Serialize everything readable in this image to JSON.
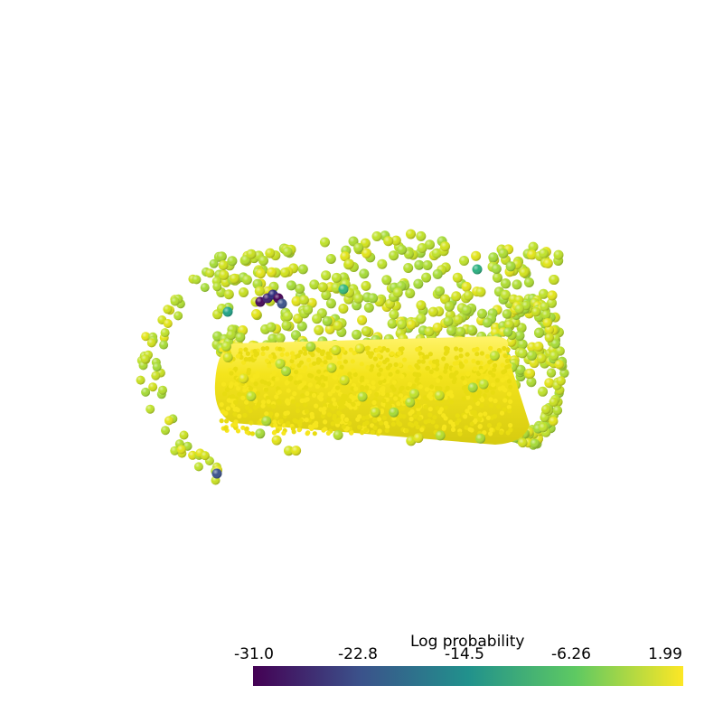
{
  "scene": {
    "colormap": "viridis",
    "background": "#ffffff",
    "glyph": "sphere",
    "objects": [
      "dense-cylinder",
      "sparse-half-shell",
      "outlier-points"
    ]
  },
  "scalar_bar": {
    "title": "Log probability",
    "range": [
      -31.0,
      1.99
    ],
    "ticks": [
      "-31.0",
      "-22.8",
      "-14.5",
      "-6.26",
      "1.99"
    ],
    "colors": [
      "#440154",
      "#3b528b",
      "#21918c",
      "#5ec962",
      "#fde725"
    ]
  }
}
